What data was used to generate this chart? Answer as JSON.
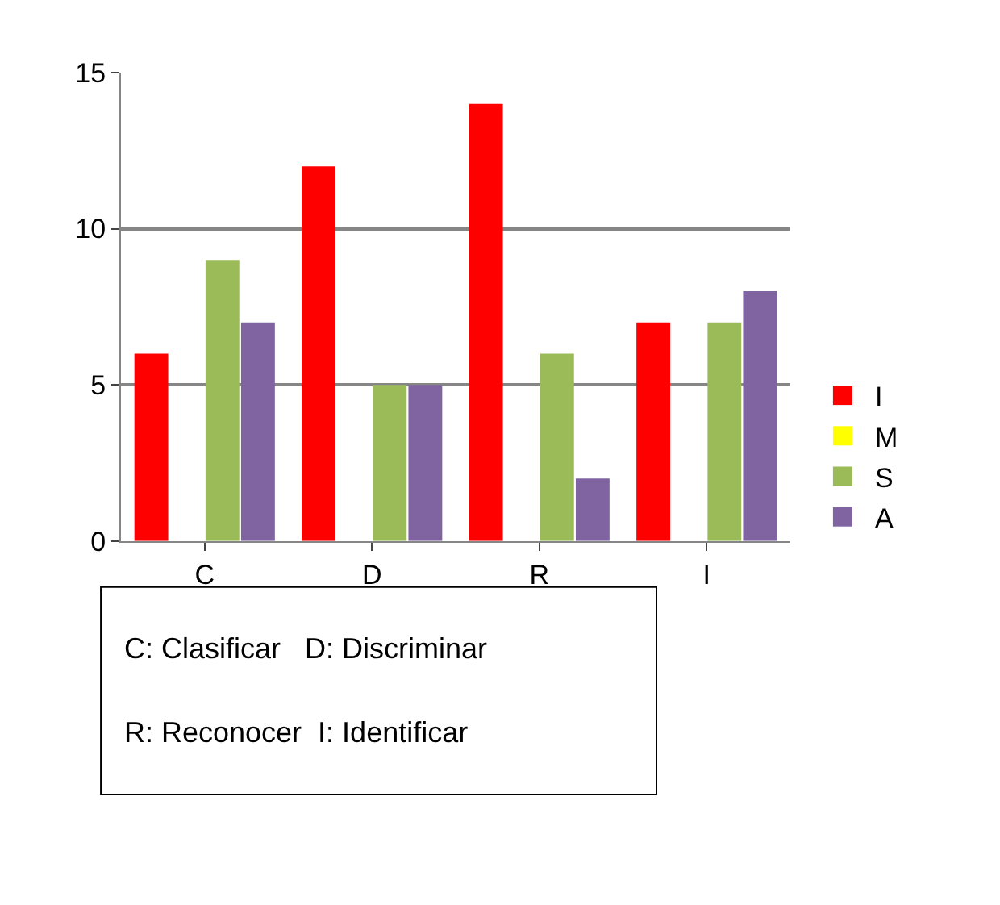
{
  "chart_data": {
    "type": "bar",
    "categories": [
      "C",
      "D",
      "R",
      "I"
    ],
    "series": [
      {
        "name": "I",
        "color": "#ff0000",
        "values": [
          6,
          12,
          14,
          7
        ]
      },
      {
        "name": "M",
        "color": "#ffff00",
        "values": [
          0,
          0,
          0,
          0
        ]
      },
      {
        "name": "S",
        "color": "#9bbb59",
        "values": [
          9,
          5,
          6,
          7
        ]
      },
      {
        "name": "A",
        "color": "#8064a2",
        "values": [
          7,
          5,
          2,
          8
        ]
      }
    ],
    "ylim": [
      0,
      15
    ],
    "yticks": [
      0,
      5,
      10,
      15
    ],
    "grid": "y",
    "legend": "right",
    "annotations": [
      "C: Clasificar   D: Discriminar",
      "R: Reconocer  I: Identificar"
    ]
  }
}
